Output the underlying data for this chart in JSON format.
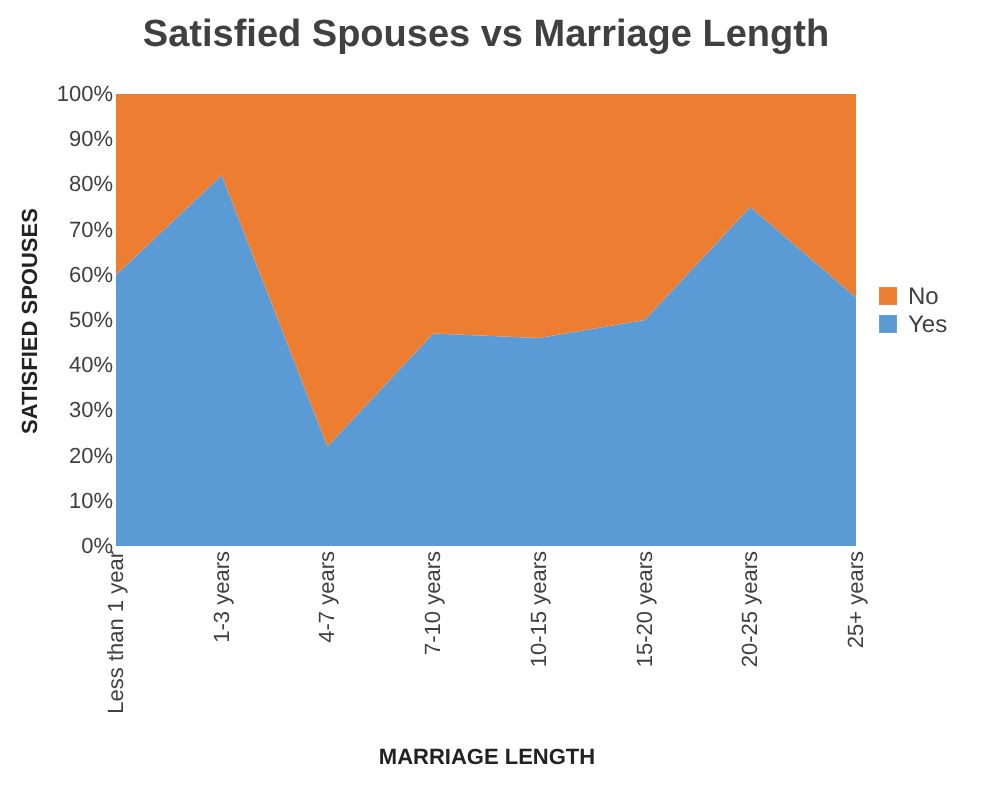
{
  "chart_data": {
    "type": "area",
    "title": "Satisfied Spouses vs Marriage Length",
    "xlabel": "MARRIAGE LENGTH",
    "ylabel": "SATISFIED SPOUSES",
    "categories": [
      "Less than 1 year",
      "1-3 years",
      "4-7 years",
      "7-10 years",
      "10-15 years",
      "15-20 years",
      "20-25 years",
      "25+ years"
    ],
    "stacked": true,
    "series": [
      {
        "name": "Yes",
        "color": "#5b9bd5",
        "values": [
          60,
          82,
          22,
          47,
          46,
          50,
          75,
          55
        ]
      },
      {
        "name": "No",
        "color": "#ed7d31",
        "values": [
          40,
          18,
          78,
          53,
          54,
          50,
          25,
          45
        ]
      }
    ],
    "ylim": [
      0,
      100
    ],
    "yticks": [
      {
        "value": 0,
        "label": "0%"
      },
      {
        "value": 10,
        "label": "10%"
      },
      {
        "value": 20,
        "label": "20%"
      },
      {
        "value": 30,
        "label": "30%"
      },
      {
        "value": 40,
        "label": "40%"
      },
      {
        "value": 50,
        "label": "50%"
      },
      {
        "value": 60,
        "label": "60%"
      },
      {
        "value": 70,
        "label": "70%"
      },
      {
        "value": 80,
        "label": "80%"
      },
      {
        "value": 90,
        "label": "90%"
      },
      {
        "value": 100,
        "label": "100%"
      }
    ],
    "legend": "right",
    "grid": false
  }
}
